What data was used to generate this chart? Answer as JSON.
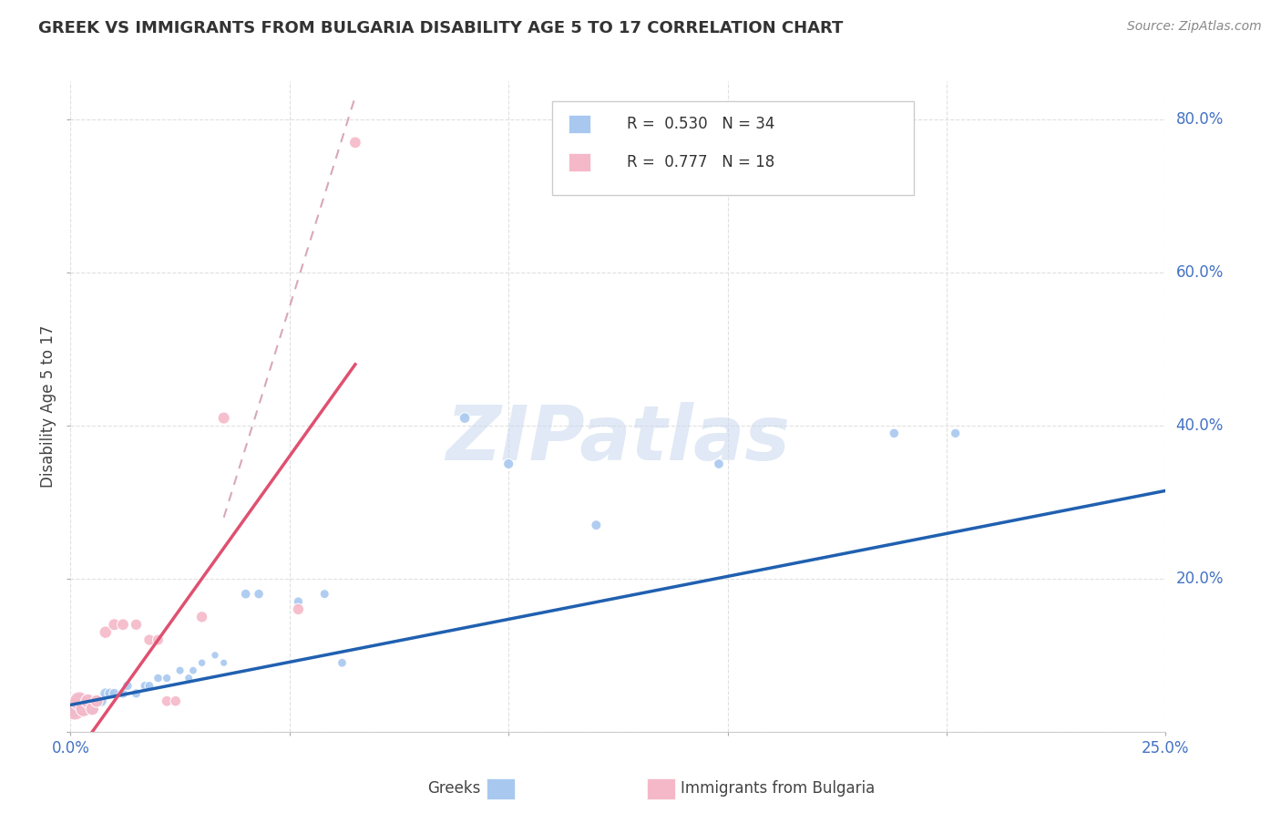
{
  "title": "GREEK VS IMMIGRANTS FROM BULGARIA DISABILITY AGE 5 TO 17 CORRELATION CHART",
  "source": "Source: ZipAtlas.com",
  "ylabel": "Disability Age 5 to 17",
  "xlim": [
    0.0,
    0.25
  ],
  "ylim": [
    0.0,
    0.85
  ],
  "xticks": [
    0.0,
    0.05,
    0.1,
    0.15,
    0.2,
    0.25
  ],
  "yticks": [
    0.0,
    0.2,
    0.4,
    0.6,
    0.8
  ],
  "legend_greek_R": "0.530",
  "legend_greek_N": "34",
  "legend_bulg_R": "0.777",
  "legend_bulg_N": "18",
  "greek_color": "#A8C8F0",
  "bulg_color": "#F5B8C8",
  "greek_line_color": "#2060B0",
  "bulg_line_color": "#E05070",
  "bulg_line_dash_color": "#D8A8B8",
  "background_color": "#FFFFFF",
  "grid_color": "#DDDDDD",
  "greek_points": [
    [
      0.001,
      0.03
    ],
    [
      0.002,
      0.04
    ],
    [
      0.003,
      0.03
    ],
    [
      0.004,
      0.04
    ],
    [
      0.005,
      0.03
    ],
    [
      0.006,
      0.04
    ],
    [
      0.007,
      0.04
    ],
    [
      0.008,
      0.05
    ],
    [
      0.009,
      0.05
    ],
    [
      0.01,
      0.05
    ],
    [
      0.012,
      0.05
    ],
    [
      0.013,
      0.06
    ],
    [
      0.015,
      0.05
    ],
    [
      0.017,
      0.06
    ],
    [
      0.018,
      0.06
    ],
    [
      0.02,
      0.07
    ],
    [
      0.022,
      0.07
    ],
    [
      0.025,
      0.08
    ],
    [
      0.027,
      0.07
    ],
    [
      0.028,
      0.08
    ],
    [
      0.03,
      0.09
    ],
    [
      0.033,
      0.1
    ],
    [
      0.035,
      0.09
    ],
    [
      0.04,
      0.18
    ],
    [
      0.043,
      0.18
    ],
    [
      0.052,
      0.17
    ],
    [
      0.058,
      0.18
    ],
    [
      0.062,
      0.09
    ],
    [
      0.09,
      0.41
    ],
    [
      0.1,
      0.35
    ],
    [
      0.12,
      0.27
    ],
    [
      0.148,
      0.35
    ],
    [
      0.188,
      0.39
    ],
    [
      0.202,
      0.39
    ]
  ],
  "greek_point_sizes": [
    200,
    150,
    120,
    100,
    90,
    80,
    80,
    75,
    70,
    65,
    60,
    58,
    55,
    52,
    50,
    48,
    45,
    43,
    42,
    40,
    38,
    36,
    35,
    60,
    58,
    55,
    52,
    50,
    70,
    65,
    62,
    60,
    58,
    56
  ],
  "bulg_points": [
    [
      0.001,
      0.03
    ],
    [
      0.002,
      0.04
    ],
    [
      0.003,
      0.03
    ],
    [
      0.004,
      0.04
    ],
    [
      0.005,
      0.03
    ],
    [
      0.006,
      0.04
    ],
    [
      0.008,
      0.13
    ],
    [
      0.01,
      0.14
    ],
    [
      0.012,
      0.14
    ],
    [
      0.015,
      0.14
    ],
    [
      0.018,
      0.12
    ],
    [
      0.02,
      0.12
    ],
    [
      0.022,
      0.04
    ],
    [
      0.024,
      0.04
    ],
    [
      0.03,
      0.15
    ],
    [
      0.035,
      0.41
    ],
    [
      0.052,
      0.16
    ],
    [
      0.065,
      0.77
    ]
  ],
  "bulg_point_sizes": [
    320,
    220,
    160,
    130,
    110,
    100,
    95,
    90,
    85,
    80,
    78,
    75,
    72,
    70,
    80,
    90,
    80,
    85
  ],
  "greek_line": {
    "x0": 0.0,
    "y0": 0.035,
    "x1": 0.25,
    "y1": 0.315
  },
  "bulg_line_solid": {
    "x0": 0.005,
    "y0": 0.0,
    "x1": 0.065,
    "y1": 0.48
  },
  "bulg_line_dash": {
    "x0": 0.035,
    "y0": 0.28,
    "x1": 0.065,
    "y1": 0.83
  }
}
